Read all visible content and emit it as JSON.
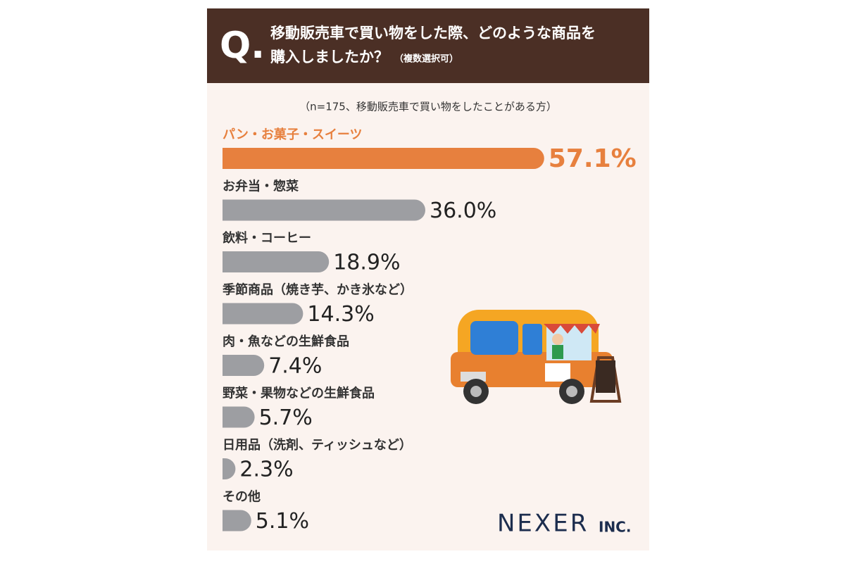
{
  "chart_data": {
    "type": "barh",
    "q_mark": "Q.",
    "title": [
      "移動販売車で買い物をした際、どのような商品を",
      "購入しましたか？"
    ],
    "note": "（複数選択可）",
    "subtitle": "（n=175、移動販売車で買い物をしたことがある方）",
    "categories": [
      "パン・お菓子・スイーツ",
      "お弁当・惣菜",
      "飲料・コーヒー",
      "季節商品（焼き芋、かき氷など）",
      "肉・魚などの生鮮食品",
      "野菜・果物などの生鮮食品",
      "日用品（洗剤、ティッシュなど）",
      "その他"
    ],
    "values": [
      57.1,
      36.0,
      18.9,
      14.3,
      7.4,
      5.7,
      2.3,
      5.1
    ],
    "value_labels": [
      "57.1%",
      "36.0%",
      "18.9%",
      "14.3%",
      "7.4%",
      "5.7%",
      "2.3%",
      "5.1%"
    ],
    "xlim": [
      0,
      60
    ],
    "color": "#9d9ea2",
    "highlight_index": 0,
    "highlight_color": "#e7803e",
    "logo": "NEXER",
    "logo_suffix": "INC."
  }
}
